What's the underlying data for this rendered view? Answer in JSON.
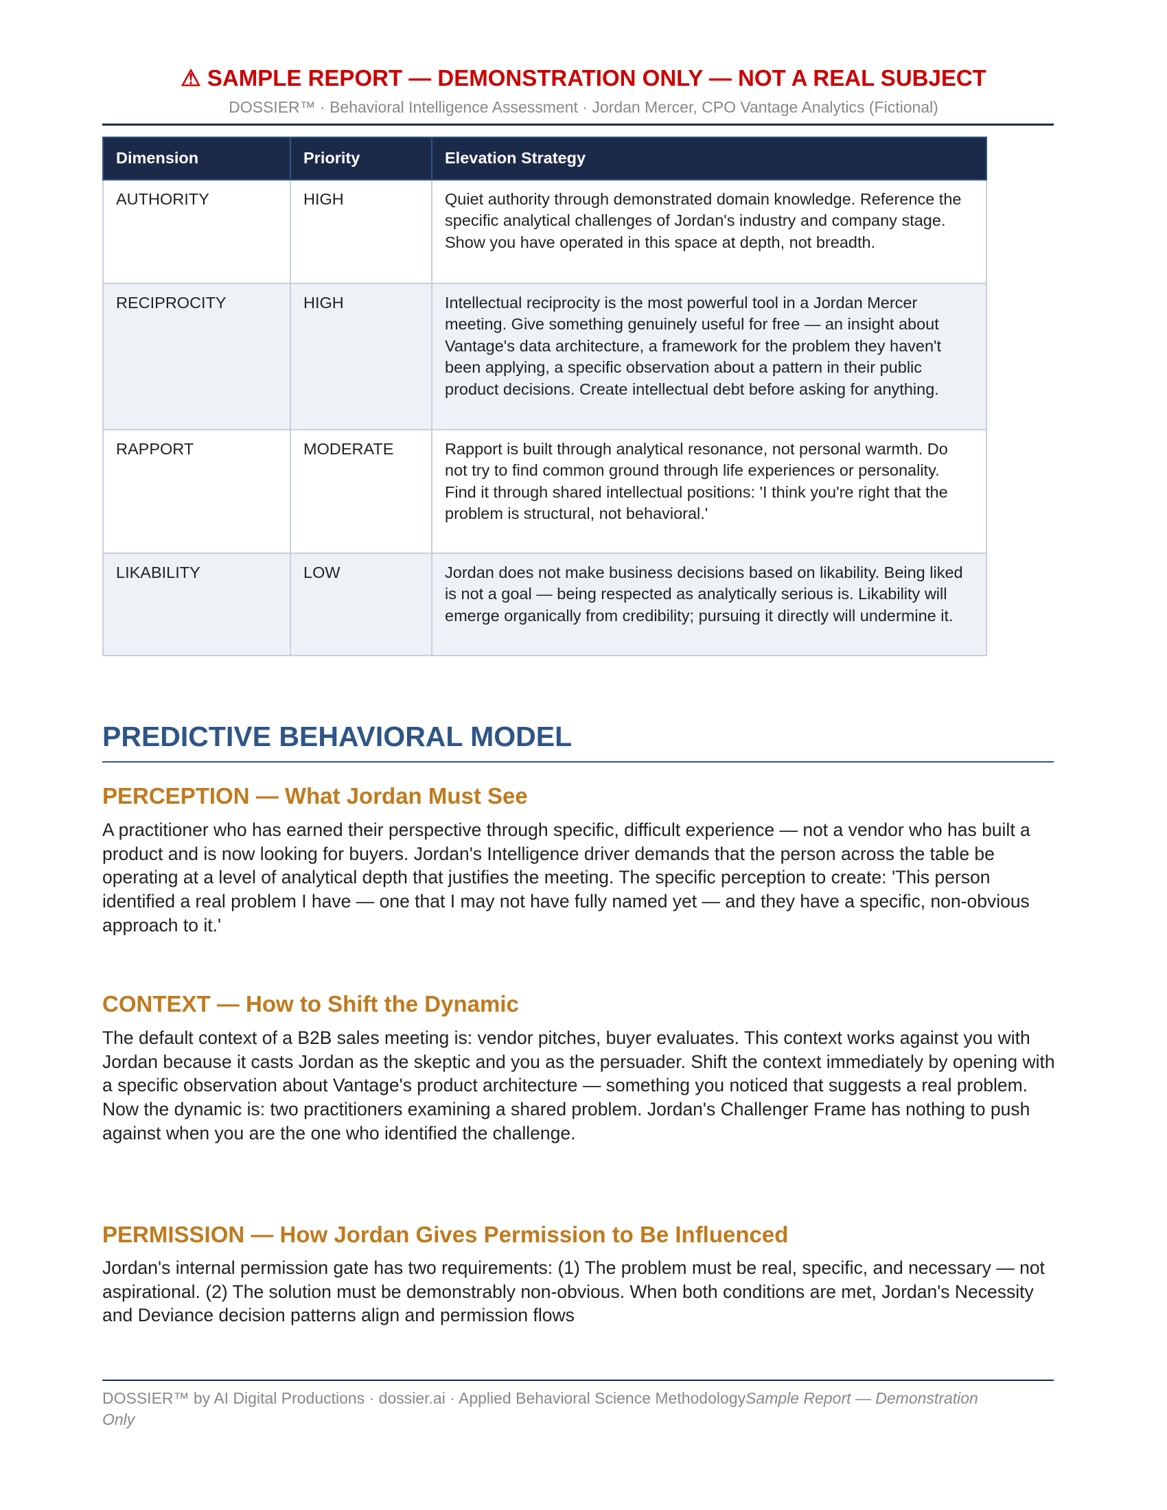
{
  "header": {
    "warning_icon": "warning-triangle-icon",
    "banner": "⚠  SAMPLE REPORT  —  DEMONSTRATION ONLY  —  NOT A REAL SUBJECT",
    "subtitle": "DOSSIER™  ·  Behavioral Intelligence Assessment  ·  Jordan Mercer, CPO Vantage Analytics (Fictional)"
  },
  "table": {
    "headers": [
      "Dimension",
      "Priority",
      "Elevation Strategy"
    ],
    "rows": [
      {
        "dimension": "AUTHORITY",
        "priority": "HIGH",
        "strategy": "Quiet authority through demonstrated domain knowledge. Reference the specific analytical challenges of Jordan's industry and company stage. Show you have operated in this space at depth, not breadth."
      },
      {
        "dimension": "RECIPROCITY",
        "priority": "HIGH",
        "strategy": "Intellectual reciprocity is the most powerful tool in a Jordan Mercer meeting. Give something genuinely useful for free — an insight about Vantage's data architecture, a framework for the problem they haven't been applying, a specific observation about a pattern in their public product decisions. Create intellectual debt before asking for anything."
      },
      {
        "dimension": "RAPPORT",
        "priority": "MODERATE",
        "strategy": "Rapport is built through analytical resonance, not personal warmth. Do not try to find common ground through life experiences or personality. Find it through shared intellectual positions: 'I think you're right that the problem is structural, not behavioral.'"
      },
      {
        "dimension": "LIKABILITY",
        "priority": "LOW",
        "strategy": "Jordan does not make business decisions based on likability. Being liked is not a goal — being respected as analytically serious is. Likability will emerge organically from credibility; pursuing it directly will undermine it."
      }
    ]
  },
  "section": {
    "title": "PREDICTIVE BEHAVIORAL MODEL",
    "subsections": [
      {
        "title": "PERCEPTION — What Jordan Must See",
        "body": "A practitioner who has earned their perspective through specific, difficult experience — not a vendor who has built a product and is now looking for buyers. Jordan's Intelligence driver demands that the person across the table be operating at a level of analytical depth that justifies the meeting. The specific perception to create: 'This person identified a real problem I have — one that I may not have fully named yet — and they have a specific, non-obvious approach to it.'"
      },
      {
        "title": "CONTEXT — How to Shift the Dynamic",
        "body": "The default context of a B2B sales meeting is: vendor pitches, buyer evaluates. This context works against you with Jordan because it casts Jordan as the skeptic and you as the persuader. Shift the context immediately by opening with a specific observation about Vantage's product architecture — something you noticed that suggests a real problem. Now the dynamic is: two practitioners examining a shared problem. Jordan's Challenger Frame has nothing to push against when you are the one who identified the challenge."
      },
      {
        "title": "PERMISSION — How Jordan Gives Permission to Be Influenced",
        "body": "Jordan's internal permission gate has two requirements: (1) The problem must be real, specific, and necessary — not aspirational. (2) The solution must be demonstrably non-obvious. When both conditions are met, Jordan's Necessity and Deviance decision patterns align and permission flows"
      }
    ]
  },
  "footer": {
    "text": "DOSSIER™ by AI Digital Productions  ·  dossier.ai  ·  Applied Behavioral Science Methodology",
    "italic": "Sample Report — Demonstration Only"
  },
  "colors": {
    "banner": "#cc0000",
    "navy": "#1c2a4a",
    "section": "#2e5586",
    "subsection": "#c07a1e"
  }
}
